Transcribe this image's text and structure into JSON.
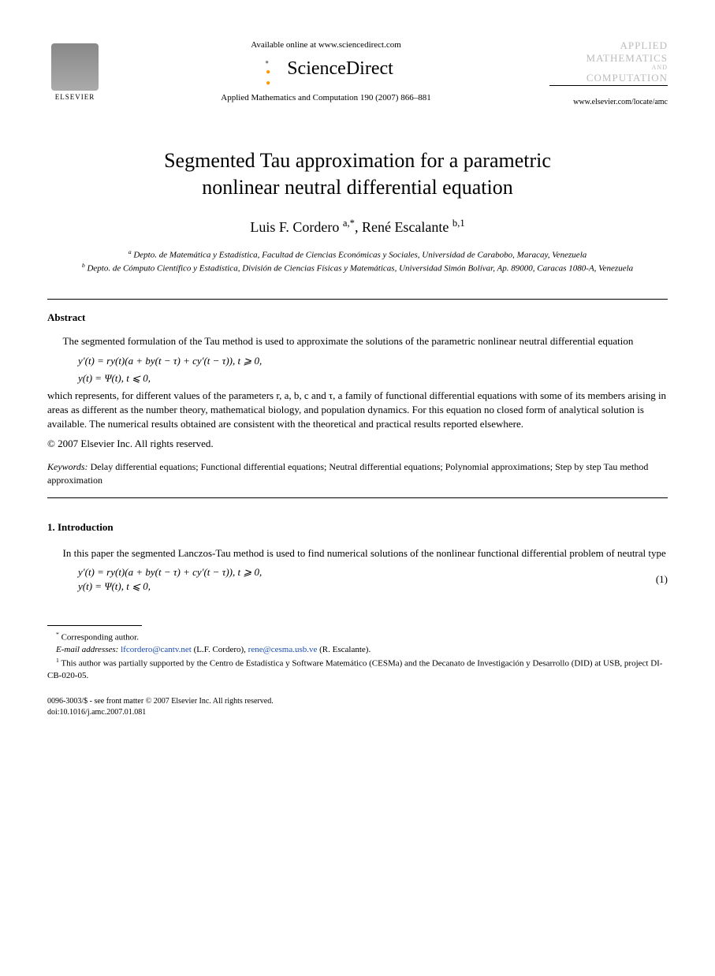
{
  "header": {
    "elsevier_label": "ELSEVIER",
    "available_online": "Available online at www.sciencedirect.com",
    "sd_brand": "ScienceDirect",
    "journal_ref": "Applied Mathematics and Computation 190 (2007) 866–881",
    "journal_logo_line1": "APPLIED",
    "journal_logo_line2": "MATHEMATICS",
    "journal_logo_and": "AND",
    "journal_logo_line3": "COMPUTATION",
    "locate_url": "www.elsevier.com/locate/amc"
  },
  "title_line1": "Segmented Tau approximation for a parametric",
  "title_line2": "nonlinear neutral differential equation",
  "authors": {
    "a1_name": "Luis F. Cordero",
    "a1_sup": "a,*",
    "a2_name": "René Escalante",
    "a2_sup": "b,1"
  },
  "affiliations": {
    "a": "Depto. de Matemática y Estadística, Facultad de Ciencias Económicas y Sociales, Universidad de Carabobo, Maracay, Venezuela",
    "b": "Depto. de Cómputo Científico y Estadística, División de Ciencias Físicas y Matemáticas, Universidad Simón Bolívar, Ap. 89000, Caracas 1080-A, Venezuela"
  },
  "abstract": {
    "heading": "Abstract",
    "p1": "The segmented formulation of the Tau method is used to approximate the solutions of the parametric nonlinear neutral differential equation",
    "eq1": "y′(t) = ry(t)(a + by(t − τ) + cy′(t − τ)),    t ⩾ 0,",
    "eq2": "y(t) = Ψ(t),    t ⩽ 0,",
    "p2": "which represents, for different values of the parameters r, a, b, c and τ, a family of functional differential equations with some of its members arising in areas as different as the number theory, mathematical biology, and population dynamics. For this equation no closed form of analytical solution is available. The numerical results obtained are consistent with the theoretical and practical results reported elsewhere.",
    "copyright": "© 2007 Elsevier Inc. All rights reserved.",
    "keywords_label": "Keywords:",
    "keywords": "Delay differential equations; Functional differential equations; Neutral differential equations; Polynomial approximations; Step by step Tau method approximation"
  },
  "section1": {
    "heading": "1. Introduction",
    "p1": "In this paper the segmented Lanczos-Tau method is used to find numerical solutions of the nonlinear functional differential problem of neutral type",
    "eq1": "y′(t) = ry(t)(a + by(t − τ) + cy′(t − τ)),    t ⩾ 0,",
    "eq2": "y(t) = Ψ(t),    t ⩽ 0,",
    "eqnum": "(1)"
  },
  "footnotes": {
    "corr": "Corresponding author.",
    "email_label": "E-mail addresses:",
    "email1": "lfcordero@cantv.net",
    "email1_who": "(L.F. Cordero),",
    "email2": "rene@cesma.usb.ve",
    "email2_who": "(R. Escalante).",
    "note1": "This author was partially supported by the Centro de Estadística y Software Matemático (CESMa) and the Decanato de Investigación y Desarrollo (DID) at USB, project DI-CB-020-05."
  },
  "doi": {
    "line1": "0096-3003/$ - see front matter © 2007 Elsevier Inc. All rights reserved.",
    "line2": "doi:10.1016/j.amc.2007.01.081"
  },
  "colors": {
    "text": "#000000",
    "link": "#1a4db3",
    "logo_gray": "#bbbbbb",
    "background": "#ffffff"
  },
  "typography": {
    "body_font": "Georgia / Times New Roman serif",
    "body_size_pt": 10,
    "title_size_pt": 20,
    "authors_size_pt": 14,
    "footnote_size_pt": 8
  }
}
